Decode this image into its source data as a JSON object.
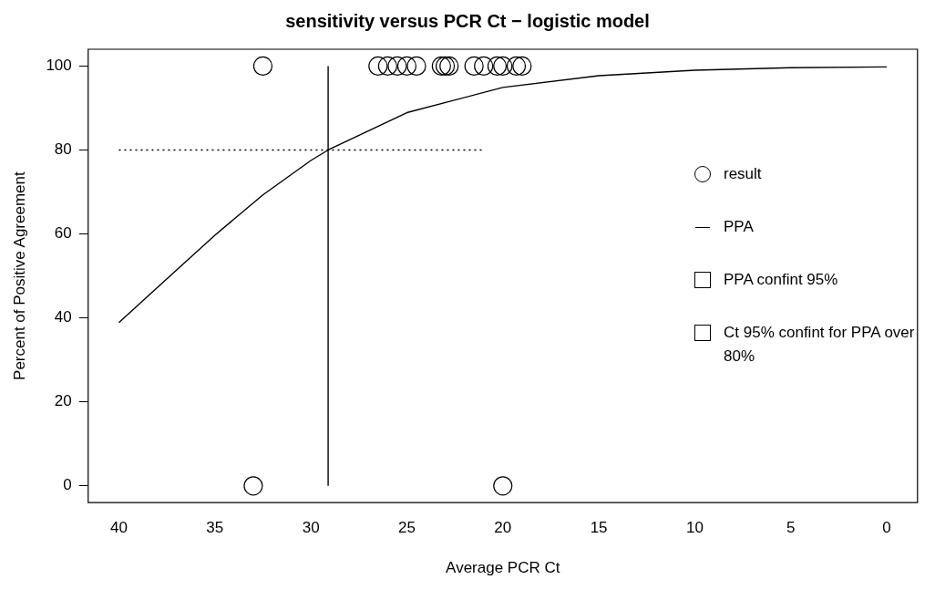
{
  "chart_data": {
    "type": "scatter",
    "title": "sensitivity versus PCR Ct − logistic model",
    "xlabel": "Average PCR Ct",
    "ylabel": "Percent of Positive Agreement",
    "xlim": [
      41.6,
      -1.6
    ],
    "xticks": [
      40,
      35,
      30,
      25,
      20,
      15,
      10,
      5,
      0
    ],
    "ylim": [
      -4,
      104
    ],
    "yticks": [
      0,
      20,
      40,
      60,
      80,
      100
    ],
    "grid": false,
    "legend": "right",
    "series": [
      {
        "type": "scatter",
        "name": "result",
        "color": "#000000",
        "marker": "circle",
        "x": [
          32.5,
          26.5,
          26,
          25.5,
          25,
          24.5,
          23.2,
          23,
          22.8,
          21.5,
          21,
          20.3,
          20,
          19.3,
          19,
          33,
          20
        ],
        "values": [
          100,
          100,
          100,
          100,
          100,
          100,
          100,
          100,
          100,
          100,
          100,
          100,
          100,
          100,
          100,
          0,
          0
        ]
      },
      {
        "type": "line",
        "name": "PPA",
        "color": "#000000",
        "marker": "none",
        "line_style": "solid",
        "x": [
          40,
          37.5,
          35,
          32.5,
          30,
          29.1,
          25,
          20,
          15,
          10,
          5,
          0
        ],
        "values": [
          38.9,
          49.3,
          59.7,
          69.3,
          77.5,
          80,
          88.9,
          94.9,
          97.7,
          99,
          99.6,
          99.8
        ]
      },
      {
        "type": "area",
        "name": "PPA confint 95%",
        "color": "#000000",
        "marker": "square"
      },
      {
        "type": "area",
        "name": "Ct 95% confint for PPA over 80%",
        "color": "#000000",
        "marker": "square"
      },
      {
        "type": "line",
        "color": "#000000",
        "marker": "none",
        "line_style": "solid",
        "x": [
          29.1,
          29.1
        ],
        "values": [
          0,
          100
        ]
      },
      {
        "type": "line",
        "color": "#000000",
        "marker": "none",
        "line_style": "dotted",
        "x": [
          40,
          21
        ],
        "values": [
          80,
          80
        ]
      }
    ]
  }
}
